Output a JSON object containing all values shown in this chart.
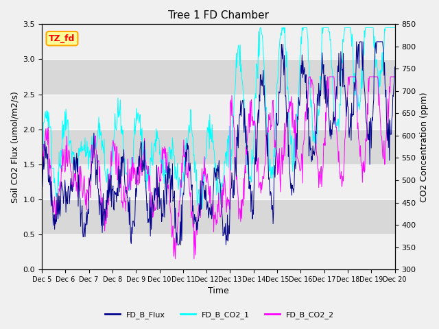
{
  "title": "Tree 1 FD Chamber",
  "ylabel_left": "Soil CO2 Flux (umol/m2/s)",
  "ylabel_right": "CO2 Concentration (ppm)",
  "xlabel": "Time",
  "ylim_left": [
    0.0,
    3.5
  ],
  "ylim_right": [
    300,
    850
  ],
  "yticks_left": [
    0.0,
    0.5,
    1.0,
    1.5,
    2.0,
    2.5,
    3.0,
    3.5
  ],
  "yticks_right": [
    300,
    350,
    400,
    450,
    500,
    550,
    600,
    650,
    700,
    750,
    800,
    850
  ],
  "xtick_labels": [
    "Dec 5",
    "Dec 6",
    "Dec 7",
    "Dec 8",
    "Dec 9",
    "Dec 10",
    "Dec 11",
    "Dec 12",
    "Dec 13",
    "Dec 14",
    "Dec 15",
    "Dec 16",
    "Dec 17",
    "Dec 18",
    "Dec 19",
    "Dec 20"
  ],
  "color_flux": "#00008B",
  "color_co2_1": "#00FFFF",
  "color_co2_2": "#FF00FF",
  "label_flux": "FD_B_Flux",
  "label_co2_1": "FD_B_CO2_1",
  "label_co2_2": "FD_B_CO2_2",
  "tag_text": "TZ_fd",
  "tag_bg": "#FFFF99",
  "tag_edge": "#FFA500",
  "plot_bg": "#F0F0F0",
  "n_days": 15,
  "n_points_per_day": 48
}
